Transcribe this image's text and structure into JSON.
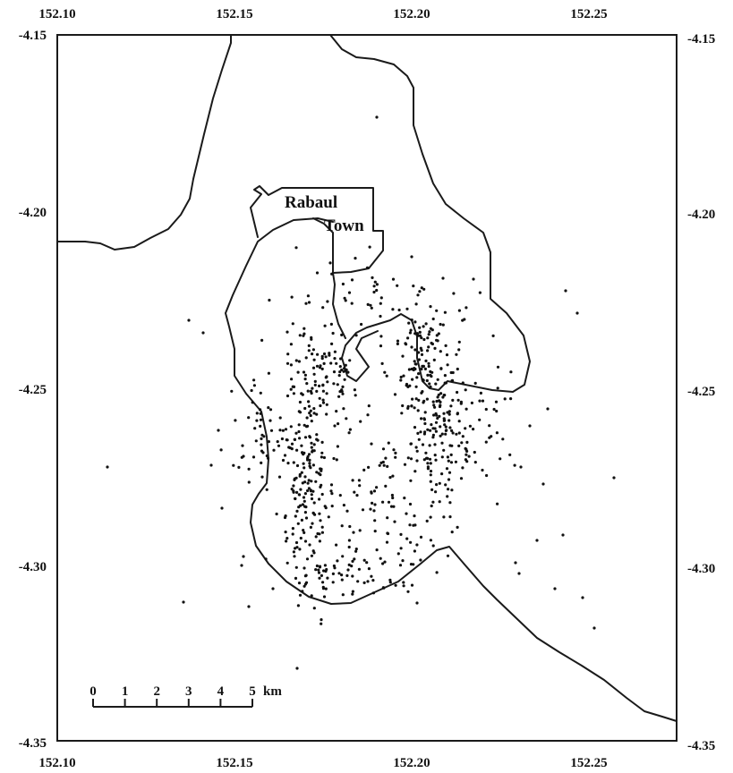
{
  "map": {
    "lon_ticks": [
      "152.10",
      "152.15",
      "152.20",
      "152.25"
    ],
    "lat_ticks": [
      "-4.15",
      "-4.20",
      "-4.25",
      "-4.30",
      "-4.35"
    ],
    "place_label_1": "Rabaul",
    "place_label_2": "Town",
    "scale_bar": {
      "numbers": [
        "0",
        "1",
        "2",
        "3",
        "4",
        "5"
      ],
      "unit": "km"
    },
    "colors": {
      "line": "#1a1a1a",
      "dots": "#111111",
      "background": "#ffffff"
    }
  }
}
